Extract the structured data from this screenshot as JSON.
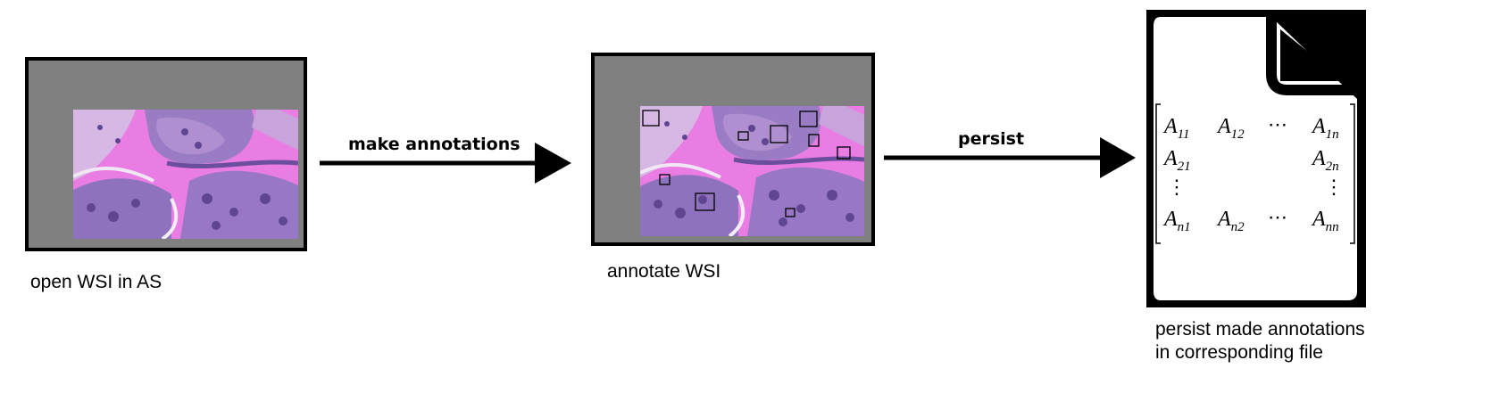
{
  "steps": [
    {
      "caption": "open WSI in AS"
    },
    {
      "caption": "annotate WSI"
    },
    {
      "caption_line1": "persist made annotations",
      "caption_line2": "in corresponding file"
    }
  ],
  "arrows": [
    {
      "label": "make annotations"
    },
    {
      "label": "persist"
    }
  ],
  "matrix": {
    "cells": [
      {
        "base": "A",
        "sub": "11"
      },
      {
        "base": "A",
        "sub": "12"
      },
      {
        "base": "A",
        "sub": "1n"
      },
      {
        "base": "A",
        "sub": "21"
      },
      {
        "base": "A",
        "sub": "2n"
      },
      {
        "base": "A",
        "sub": "n1"
      },
      {
        "base": "A",
        "sub": "n2"
      },
      {
        "base": "A",
        "sub": "nn"
      }
    ],
    "hdots": "⋯",
    "vdots": "⋮"
  },
  "colors": {
    "viewer_gray": "#808080",
    "tissue_pink": "#e979e3",
    "nuclei_purple": "#7a5aa8"
  }
}
